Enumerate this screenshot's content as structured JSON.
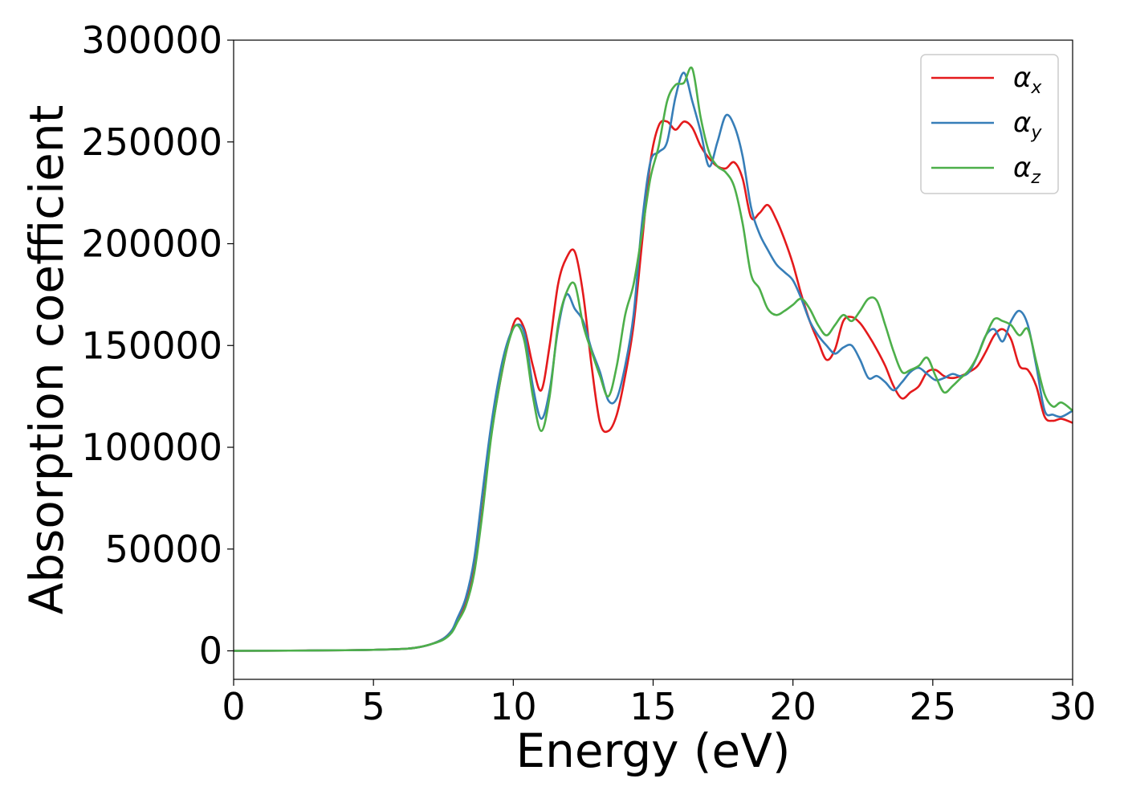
{
  "chart_data": {
    "type": "line",
    "title": "",
    "xlabel": "Energy (eV)",
    "ylabel": "Absorption coefficient",
    "xlim": [
      0,
      30
    ],
    "ylim": [
      -14000,
      300000
    ],
    "xticks": [
      0,
      5,
      10,
      15,
      20,
      25,
      30
    ],
    "yticks": [
      0,
      50000,
      100000,
      150000,
      200000,
      250000,
      300000
    ],
    "grid": false,
    "legend_position": "top-right",
    "series": [
      {
        "name": "αx",
        "symbol": "α",
        "subscript": "x",
        "color": "#e41a1c",
        "x": [
          0,
          2,
          4,
          5,
          6,
          6.5,
          7,
          7.5,
          7.8,
          8,
          8.3,
          8.6,
          8.9,
          9.2,
          9.5,
          9.8,
          10.1,
          10.4,
          10.7,
          11.0,
          11.3,
          11.6,
          11.9,
          12.2,
          12.5,
          12.8,
          13.1,
          13.4,
          13.7,
          14.0,
          14.3,
          14.6,
          14.9,
          15.2,
          15.5,
          15.8,
          16.1,
          16.4,
          16.7,
          17.0,
          17.3,
          17.6,
          17.9,
          18.2,
          18.5,
          18.8,
          19.1,
          19.4,
          19.7,
          20.0,
          20.3,
          20.6,
          20.9,
          21.2,
          21.5,
          21.8,
          22.1,
          22.4,
          22.7,
          23.0,
          23.3,
          23.6,
          23.9,
          24.2,
          24.5,
          24.8,
          25.1,
          25.4,
          25.7,
          26.0,
          26.3,
          26.6,
          26.9,
          27.2,
          27.5,
          27.8,
          28.1,
          28.4,
          28.7,
          29.0,
          29.3,
          29.6,
          30
        ],
        "y": [
          0,
          100,
          300,
          500,
          900,
          1500,
          3000,
          6000,
          10000,
          15000,
          24000,
          40000,
          70000,
          105000,
          130000,
          150000,
          163000,
          158000,
          140000,
          128000,
          150000,
          180000,
          193000,
          196000,
          175000,
          140000,
          112000,
          108000,
          116000,
          135000,
          160000,
          200000,
          240000,
          258000,
          260000,
          256000,
          260000,
          257000,
          248000,
          242000,
          238000,
          237000,
          240000,
          232000,
          213000,
          215000,
          219000,
          212000,
          202000,
          190000,
          175000,
          162000,
          152000,
          143000,
          148000,
          162000,
          164000,
          161000,
          155000,
          148000,
          140000,
          130000,
          124000,
          127000,
          130000,
          137000,
          138000,
          135000,
          134000,
          135000,
          137000,
          140000,
          147000,
          155000,
          158000,
          153000,
          140000,
          138000,
          130000,
          115000,
          113000,
          114000,
          112000
        ]
      },
      {
        "name": "αy",
        "symbol": "α",
        "subscript": "y",
        "color": "#377eb8",
        "x": [
          0,
          2,
          4,
          5,
          6,
          6.5,
          7,
          7.5,
          7.8,
          8,
          8.3,
          8.6,
          8.9,
          9.2,
          9.5,
          9.8,
          10.1,
          10.4,
          10.7,
          11.0,
          11.3,
          11.6,
          11.9,
          12.2,
          12.5,
          12.8,
          13.1,
          13.4,
          13.7,
          14.0,
          14.3,
          14.6,
          14.9,
          15.2,
          15.5,
          15.8,
          16.1,
          16.4,
          16.7,
          17.0,
          17.3,
          17.6,
          17.9,
          18.2,
          18.5,
          18.8,
          19.1,
          19.4,
          19.7,
          20.0,
          20.3,
          20.6,
          20.9,
          21.2,
          21.5,
          21.8,
          22.1,
          22.4,
          22.7,
          23.0,
          23.3,
          23.6,
          23.9,
          24.2,
          24.5,
          24.8,
          25.1,
          25.4,
          25.7,
          26.0,
          26.3,
          26.6,
          26.9,
          27.2,
          27.5,
          27.8,
          28.1,
          28.4,
          28.7,
          29.0,
          29.3,
          29.6,
          30
        ],
        "y": [
          0,
          100,
          300,
          500,
          900,
          1500,
          3000,
          6000,
          10000,
          16000,
          26000,
          45000,
          78000,
          110000,
          135000,
          152000,
          160000,
          156000,
          130000,
          114000,
          128000,
          158000,
          175000,
          168000,
          162000,
          148000,
          137000,
          123000,
          124000,
          140000,
          165000,
          210000,
          240000,
          245000,
          250000,
          272000,
          284000,
          270000,
          255000,
          238000,
          250000,
          263000,
          258000,
          243000,
          218000,
          205000,
          197000,
          190000,
          186000,
          182000,
          173000,
          162000,
          155000,
          150000,
          146000,
          149000,
          150000,
          143000,
          134000,
          135000,
          132000,
          128000,
          132000,
          137000,
          139000,
          136000,
          133000,
          134000,
          136000,
          135000,
          137000,
          145000,
          155000,
          158000,
          152000,
          162000,
          167000,
          160000,
          140000,
          118000,
          116000,
          115000,
          118000
        ]
      },
      {
        "name": "αz",
        "symbol": "α",
        "subscript": "z",
        "color": "#4daf4a",
        "x": [
          0,
          2,
          4,
          5,
          6,
          6.5,
          7,
          7.5,
          7.8,
          8,
          8.3,
          8.6,
          8.9,
          9.2,
          9.5,
          9.8,
          10.1,
          10.4,
          10.7,
          11.0,
          11.3,
          11.6,
          11.9,
          12.2,
          12.5,
          12.8,
          13.1,
          13.4,
          13.7,
          14.0,
          14.3,
          14.6,
          14.9,
          15.2,
          15.5,
          15.8,
          16.1,
          16.4,
          16.7,
          17.0,
          17.3,
          17.6,
          17.9,
          18.2,
          18.5,
          18.8,
          19.1,
          19.4,
          19.7,
          20.0,
          20.3,
          20.6,
          20.9,
          21.2,
          21.5,
          21.8,
          22.1,
          22.4,
          22.7,
          23.0,
          23.3,
          23.6,
          23.9,
          24.2,
          24.5,
          24.8,
          25.1,
          25.4,
          25.7,
          26.0,
          26.3,
          26.6,
          26.9,
          27.2,
          27.5,
          27.8,
          28.1,
          28.4,
          28.7,
          29.0,
          29.3,
          29.6,
          30
        ],
        "y": [
          0,
          100,
          300,
          500,
          900,
          1500,
          3000,
          5500,
          9000,
          14000,
          22000,
          38000,
          68000,
          104000,
          130000,
          150000,
          160000,
          152000,
          125000,
          108000,
          125000,
          160000,
          176000,
          180000,
          160000,
          147000,
          135000,
          125000,
          140000,
          165000,
          180000,
          205000,
          232000,
          248000,
          270000,
          278000,
          279000,
          286000,
          262000,
          245000,
          238000,
          235000,
          228000,
          210000,
          185000,
          178000,
          168000,
          165000,
          167000,
          170000,
          173000,
          168000,
          160000,
          155000,
          160000,
          165000,
          162000,
          167000,
          173000,
          172000,
          160000,
          147000,
          137000,
          138000,
          140000,
          144000,
          135000,
          127000,
          130000,
          134000,
          138000,
          145000,
          155000,
          163000,
          162000,
          160000,
          155000,
          158000,
          142000,
          126000,
          120000,
          122000,
          118000
        ]
      }
    ]
  }
}
